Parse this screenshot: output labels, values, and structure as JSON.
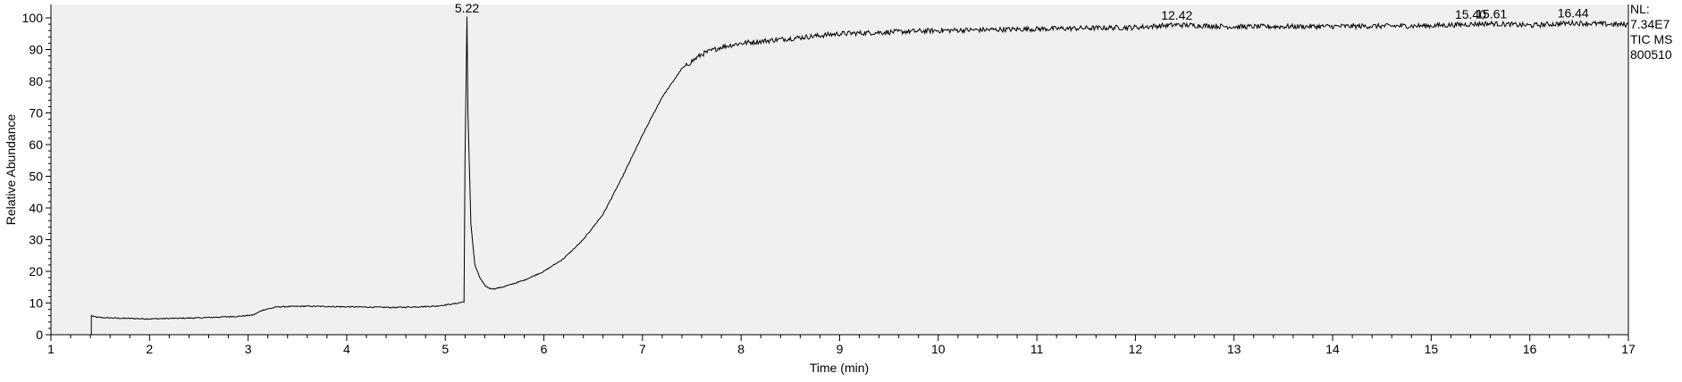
{
  "chart_data": {
    "type": "line",
    "xlabel": "Time (min)",
    "ylabel": "Relative Abundance",
    "xlim": [
      1,
      17
    ],
    "ylim": [
      0,
      100
    ],
    "xticks": [
      1,
      2,
      3,
      4,
      5,
      6,
      7,
      8,
      9,
      10,
      11,
      12,
      13,
      14,
      15,
      16,
      17
    ],
    "yticks": [
      0,
      10,
      20,
      30,
      40,
      50,
      60,
      70,
      80,
      90,
      100
    ],
    "info": [
      "NL:",
      "7.34E7",
      "TIC  MS",
      "800510"
    ],
    "peak_labels": [
      {
        "x": 5.22,
        "y": 100,
        "text": "5.22"
      },
      {
        "x": 12.42,
        "y": 97.8,
        "text": "12.42"
      },
      {
        "x": 15.4,
        "y": 98.0,
        "text": "15.40"
      },
      {
        "x": 15.61,
        "y": 98.2,
        "text": "15.61"
      },
      {
        "x": 16.44,
        "y": 98.4,
        "text": "16.44"
      }
    ],
    "series": [
      {
        "x": [
          1.0,
          1.41,
          1.41,
          1.45,
          1.5,
          1.7,
          2.0,
          2.5,
          2.9,
          3.05,
          3.15,
          3.3,
          3.6,
          4.0,
          4.5,
          4.9,
          5.1,
          5.19,
          5.2,
          5.22,
          5.23,
          5.26,
          5.3,
          5.35,
          5.4,
          5.45,
          5.5,
          5.6,
          5.8,
          6.0,
          6.2,
          6.4,
          6.6,
          6.8,
          7.0,
          7.2,
          7.4,
          7.6,
          7.8,
          8.0,
          8.5,
          9.0,
          9.5,
          10.0,
          11.0,
          12.0,
          12.42,
          13.0,
          14.0,
          15.0,
          15.4,
          15.61,
          16.0,
          16.44,
          17.0
        ],
        "y": [
          0,
          0,
          6,
          5.6,
          5.4,
          5.2,
          5.0,
          5.3,
          5.8,
          6.2,
          7.8,
          8.8,
          9.0,
          8.8,
          8.6,
          9.0,
          9.8,
          10.4,
          55,
          100,
          70,
          35,
          22,
          18,
          15.5,
          14.6,
          14.5,
          15.2,
          17.2,
          20.0,
          24.0,
          30.0,
          38.0,
          50.0,
          63.0,
          75.0,
          84.0,
          88.5,
          90.8,
          92.0,
          93.5,
          95.0,
          95.5,
          96.0,
          96.5,
          97.0,
          97.8,
          97.2,
          97.3,
          97.5,
          98.0,
          98.2,
          97.6,
          98.4,
          97.8
        ]
      }
    ]
  }
}
